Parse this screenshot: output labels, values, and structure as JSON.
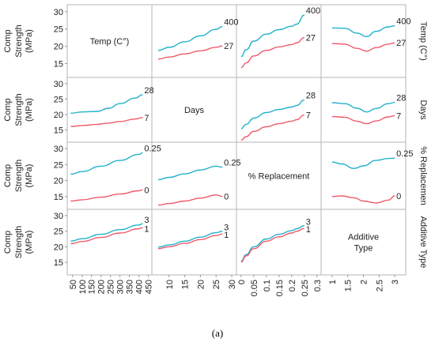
{
  "caption": "(a)",
  "chart_data": {
    "type": "line",
    "variables": [
      {
        "key": "temp",
        "diag_label": [
          "Temp (C°)"
        ],
        "right_label": "Temp (C°)",
        "axis_ticks": [
          "50",
          "100",
          "150",
          "200",
          "250",
          "300",
          "350",
          "400",
          "450"
        ],
        "axis_range": [
          30,
          460
        ]
      },
      {
        "key": "days",
        "diag_label": [
          "Days"
        ],
        "right_label": "Days",
        "axis_ticks": [
          "10",
          "15",
          "20",
          "25",
          "30"
        ],
        "axis_range": [
          5,
          31
        ]
      },
      {
        "key": "replacement",
        "diag_label": [
          "% Replacement"
        ],
        "right_label": "% Replacemen",
        "axis_ticks": [
          "0",
          "0.05",
          "0.1",
          "0.15",
          "0.2",
          "0.25",
          "0.3"
        ],
        "axis_range": [
          -0.012,
          0.31
        ]
      },
      {
        "key": "additive",
        "diag_label": [
          "Additive",
          "Type"
        ],
        "right_label": "Additive Type",
        "axis_ticks": [
          "1",
          "1.5",
          "2",
          "2.5",
          "3"
        ],
        "axis_range": [
          0.7,
          3.3
        ]
      }
    ],
    "y_axis": {
      "label_lines": [
        "Comp",
        "Strength",
        "(MPa)"
      ],
      "ticks": [
        15,
        20,
        25,
        30
      ],
      "ylim": [
        11,
        32
      ]
    },
    "colors": {
      "high": "#22b2cc",
      "low": "#ef5a6a"
    },
    "panels": [
      {
        "row": 0,
        "col": 1,
        "labels": [
          "400",
          "27"
        ],
        "series": [
          {
            "color": "high",
            "x": [
              6.5,
              10,
              15,
              20,
              25,
              27
            ],
            "y": [
              18.8,
              19.7,
              21.3,
              23.0,
              24.9,
              25.7
            ]
          },
          {
            "color": "low",
            "x": [
              6.5,
              10,
              15,
              20,
              25,
              27
            ],
            "y": [
              16.3,
              16.9,
              17.8,
              18.7,
              19.7,
              20.1
            ]
          }
        ]
      },
      {
        "row": 0,
        "col": 2,
        "labels": [
          "400",
          "27"
        ],
        "series": [
          {
            "color": "high",
            "x": [
              0,
              0.02,
              0.05,
              0.1,
              0.15,
              0.2,
              0.22,
              0.25
            ],
            "y": [
              17.0,
              19.0,
              21.5,
              23.5,
              24.8,
              25.8,
              26.4,
              29.0
            ]
          },
          {
            "color": "low",
            "x": [
              0,
              0.02,
              0.05,
              0.1,
              0.15,
              0.2,
              0.22,
              0.25
            ],
            "y": [
              13.8,
              15.2,
              17.2,
              18.8,
              19.8,
              20.5,
              21.0,
              22.5
            ]
          }
        ]
      },
      {
        "row": 0,
        "col": 3,
        "labels": [
          "400",
          "27"
        ],
        "series": [
          {
            "color": "high",
            "x": [
              1,
              1.4,
              1.8,
              2.1,
              2.4,
              2.8,
              3.0
            ],
            "y": [
              25.3,
              25.2,
              23.8,
              22.8,
              24.3,
              25.6,
              25.9
            ]
          },
          {
            "color": "low",
            "x": [
              1,
              1.4,
              1.8,
              2.1,
              2.4,
              2.8,
              3.0
            ],
            "y": [
              20.8,
              20.6,
              19.4,
              18.6,
              19.6,
              20.6,
              21.0
            ]
          }
        ]
      },
      {
        "row": 1,
        "col": 0,
        "labels": [
          "28",
          "7"
        ],
        "series": [
          {
            "color": "high",
            "x": [
              40,
              100,
              180,
              240,
              300,
              380,
              420
            ],
            "y": [
              20.4,
              20.8,
              21.0,
              22.0,
              23.5,
              25.3,
              26.4
            ]
          },
          {
            "color": "low",
            "x": [
              40,
              100,
              180,
              240,
              300,
              380,
              420
            ],
            "y": [
              16.1,
              16.4,
              16.8,
              17.2,
              17.7,
              18.5,
              19.0
            ]
          }
        ]
      },
      {
        "row": 1,
        "col": 2,
        "labels": [
          "28",
          "7"
        ],
        "series": [
          {
            "color": "high",
            "x": [
              0,
              0.02,
              0.05,
              0.1,
              0.15,
              0.2,
              0.22,
              0.25
            ],
            "y": [
              15.4,
              16.8,
              18.8,
              20.6,
              21.6,
              22.4,
              22.9,
              24.7
            ]
          },
          {
            "color": "low",
            "x": [
              0,
              0.02,
              0.05,
              0.1,
              0.15,
              0.2,
              0.22,
              0.25
            ],
            "y": [
              11.7,
              12.8,
              14.5,
              16.0,
              17.0,
              17.8,
              18.3,
              19.8
            ]
          }
        ]
      },
      {
        "row": 1,
        "col": 3,
        "labels": [
          "28",
          "7"
        ],
        "series": [
          {
            "color": "high",
            "x": [
              1,
              1.4,
              1.8,
              2.1,
              2.4,
              2.8,
              3.0
            ],
            "y": [
              23.8,
              23.5,
              22.0,
              20.8,
              21.9,
              23.5,
              23.9
            ]
          },
          {
            "color": "low",
            "x": [
              1,
              1.4,
              1.8,
              2.1,
              2.4,
              2.8,
              3.0
            ],
            "y": [
              19.3,
              19.1,
              17.8,
              17.0,
              17.9,
              19.2,
              19.6
            ]
          }
        ]
      },
      {
        "row": 2,
        "col": 0,
        "labels": [
          "0.25",
          "0"
        ],
        "series": [
          {
            "color": "high",
            "x": [
              40,
              100,
              200,
              300,
              400,
              420
            ],
            "y": [
              22.0,
              22.8,
              24.5,
              26.3,
              28.2,
              28.7
            ]
          },
          {
            "color": "low",
            "x": [
              40,
              100,
              200,
              300,
              400,
              420
            ],
            "y": [
              13.6,
              14.0,
              14.8,
              15.8,
              16.8,
              17.1
            ]
          }
        ]
      },
      {
        "row": 2,
        "col": 1,
        "labels": [
          "0.25",
          "0"
        ],
        "series": [
          {
            "color": "high",
            "x": [
              6.5,
              10,
              15,
              20,
              25,
              27
            ],
            "y": [
              20.3,
              21.0,
              22.1,
              23.3,
              24.5,
              24.2
            ]
          },
          {
            "color": "low",
            "x": [
              6.5,
              10,
              15,
              20,
              25,
              27
            ],
            "y": [
              12.3,
              12.8,
              13.6,
              14.5,
              15.5,
              15.1
            ]
          }
        ]
      },
      {
        "row": 2,
        "col": 3,
        "labels": [
          "0.25",
          "0"
        ],
        "series": [
          {
            "color": "high",
            "x": [
              1,
              1.3,
              1.7,
              2.0,
              2.4,
              2.8,
              3.0
            ],
            "y": [
              25.8,
              25.2,
              23.8,
              24.6,
              26.3,
              26.9,
              27.0
            ]
          },
          {
            "color": "low",
            "x": [
              1,
              1.3,
              1.7,
              2.0,
              2.4,
              2.8,
              3.0
            ],
            "y": [
              15.0,
              15.2,
              14.6,
              13.6,
              13.0,
              13.9,
              15.2
            ]
          }
        ]
      },
      {
        "row": 3,
        "col": 0,
        "labels": [
          "3",
          "1"
        ],
        "series": [
          {
            "color": "high",
            "x": [
              40,
              100,
              200,
              300,
              400,
              420
            ],
            "y": [
              21.8,
              22.6,
              24.0,
              25.5,
              27.0,
              27.4
            ]
          },
          {
            "color": "low",
            "x": [
              40,
              100,
              200,
              300,
              400,
              420
            ],
            "y": [
              21.0,
              21.7,
              23.0,
              24.4,
              25.8,
              26.1
            ]
          }
        ]
      },
      {
        "row": 3,
        "col": 1,
        "labels": [
          "3",
          "1"
        ],
        "series": [
          {
            "color": "high",
            "x": [
              6.5,
              10,
              15,
              20,
              25,
              27
            ],
            "y": [
              19.9,
              20.6,
              21.8,
              23.1,
              24.5,
              25.0
            ]
          },
          {
            "color": "low",
            "x": [
              6.5,
              10,
              15,
              20,
              25,
              27
            ],
            "y": [
              19.4,
              20.0,
              21.1,
              22.3,
              23.6,
              24.1
            ]
          }
        ]
      },
      {
        "row": 3,
        "col": 2,
        "labels": [
          "3",
          "1"
        ],
        "series": [
          {
            "color": "high",
            "x": [
              0,
              0.02,
              0.05,
              0.1,
              0.15,
              0.2,
              0.22,
              0.25
            ],
            "y": [
              15.4,
              17.5,
              20.0,
              22.5,
              24.0,
              25.2,
              25.8,
              26.8
            ]
          },
          {
            "color": "low",
            "x": [
              0,
              0.02,
              0.05,
              0.1,
              0.15,
              0.2,
              0.22,
              0.25
            ],
            "y": [
              15.1,
              17.1,
              19.4,
              21.8,
              23.2,
              24.4,
              25.0,
              25.9
            ]
          }
        ]
      }
    ]
  }
}
